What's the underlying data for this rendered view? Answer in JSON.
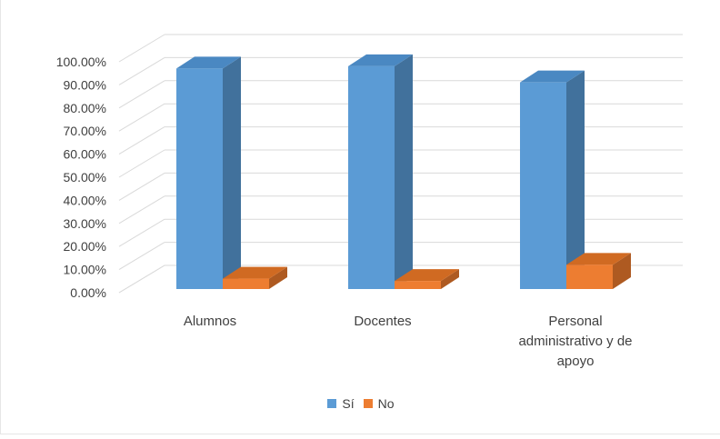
{
  "colors": {
    "si": "#5b9bd5",
    "no": "#ed7d31"
  },
  "chart_data": {
    "type": "bar",
    "categories": [
      "Alumnos",
      "Docentes",
      "Personal administrativo y de apoyo"
    ],
    "category_lines": [
      [
        "Alumnos"
      ],
      [
        "Docentes"
      ],
      [
        "Personal",
        "administrativo y de",
        "apoyo"
      ]
    ],
    "series": [
      {
        "name": "Sí",
        "values": [
          95.5,
          96.5,
          89.5
        ]
      },
      {
        "name": "No",
        "values": [
          4.5,
          3.5,
          10.5
        ]
      }
    ],
    "ylim": [
      0,
      100
    ],
    "y_ticks": [
      "0.00%",
      "10.00%",
      "20.00%",
      "30.00%",
      "40.00%",
      "50.00%",
      "60.00%",
      "70.00%",
      "80.00%",
      "90.00%",
      "100.00%"
    ],
    "grid": true,
    "legend": "bottom",
    "style": "3d-column"
  }
}
